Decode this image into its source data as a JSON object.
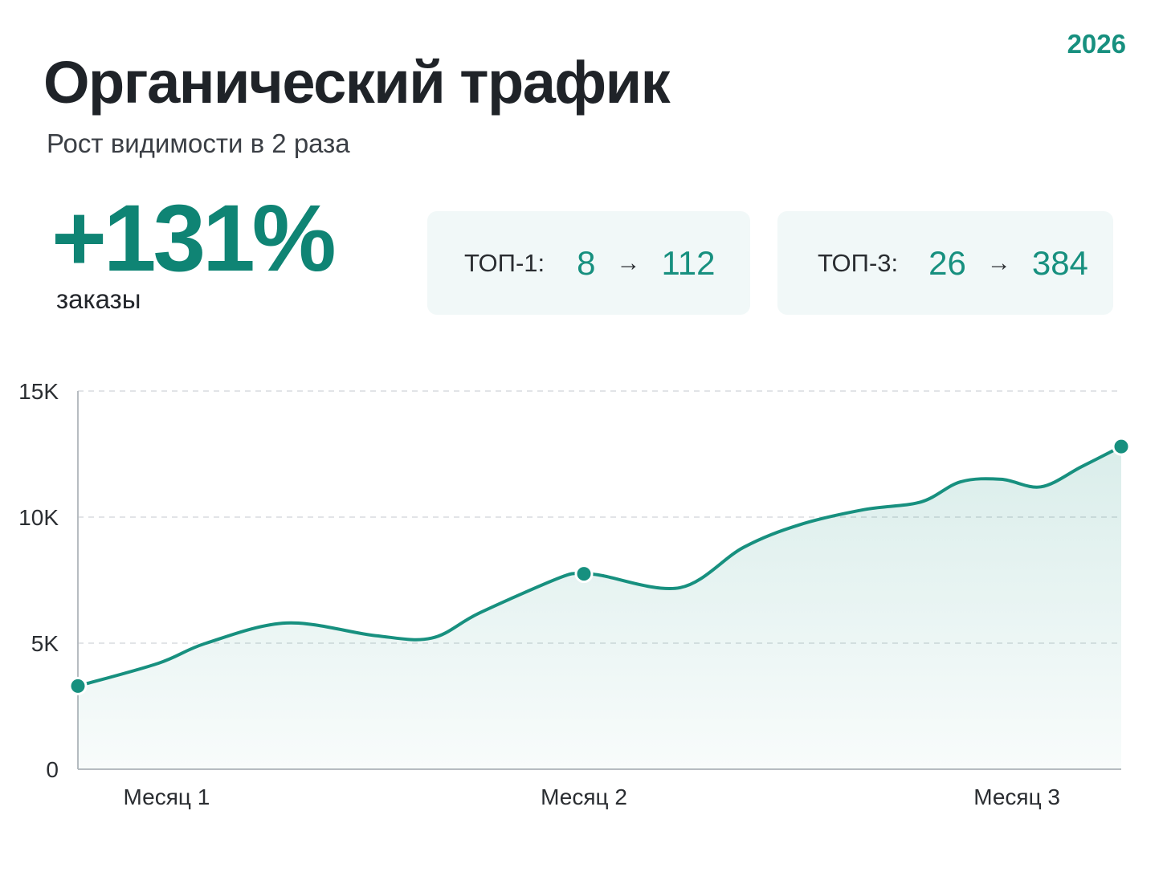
{
  "header": {
    "year": "2026",
    "title": "Органический трафик",
    "subtitle": "Рост видимости в 2 раза"
  },
  "highlight": {
    "value": "+131%",
    "label": "заказы"
  },
  "cards": [
    {
      "label": "ТОП-1:",
      "from": "8",
      "arrow": "→",
      "to": "112"
    },
    {
      "label": "ТОП-3:",
      "from": "26",
      "arrow": "→",
      "to": "384"
    }
  ],
  "colors": {
    "accent": "#17907f",
    "accent_dark": "#0f8474",
    "card_bg": "#f1f8f8",
    "grid": "#d9dcdf",
    "axis": "#b7bcc1"
  },
  "chart_data": {
    "type": "area",
    "x_range": [
      0,
      100
    ],
    "ylim": [
      0,
      15000
    ],
    "y_ticks": [
      0,
      5000,
      10000,
      15000
    ],
    "y_tick_labels": [
      "0",
      "5K",
      "10K",
      "15K"
    ],
    "x_tick_labels": [
      {
        "x": 8.5,
        "label": "Месяц 1"
      },
      {
        "x": 48.5,
        "label": "Месяц 2"
      },
      {
        "x": 90,
        "label": "Месяц 3"
      }
    ],
    "grid": true,
    "series": [
      {
        "x": [
          0,
          7.7,
          12.3,
          20,
          28.5,
          33.9,
          38.5,
          46.2,
          48.2,
          50,
          57.7,
          63.8,
          69.2,
          75.4,
          80.8,
          84.6,
          88.5,
          92.3,
          96.2,
          100
        ],
        "values": [
          3300,
          4200,
          5000,
          5800,
          5300,
          5200,
          6200,
          7600,
          7750,
          7700,
          7200,
          8800,
          9700,
          10300,
          10600,
          11400,
          11500,
          11200,
          12000,
          12800
        ]
      }
    ],
    "markers": [
      {
        "x": 0,
        "y": 3300
      },
      {
        "x": 48.5,
        "y": 7750
      },
      {
        "x": 100,
        "y": 12800
      }
    ]
  }
}
